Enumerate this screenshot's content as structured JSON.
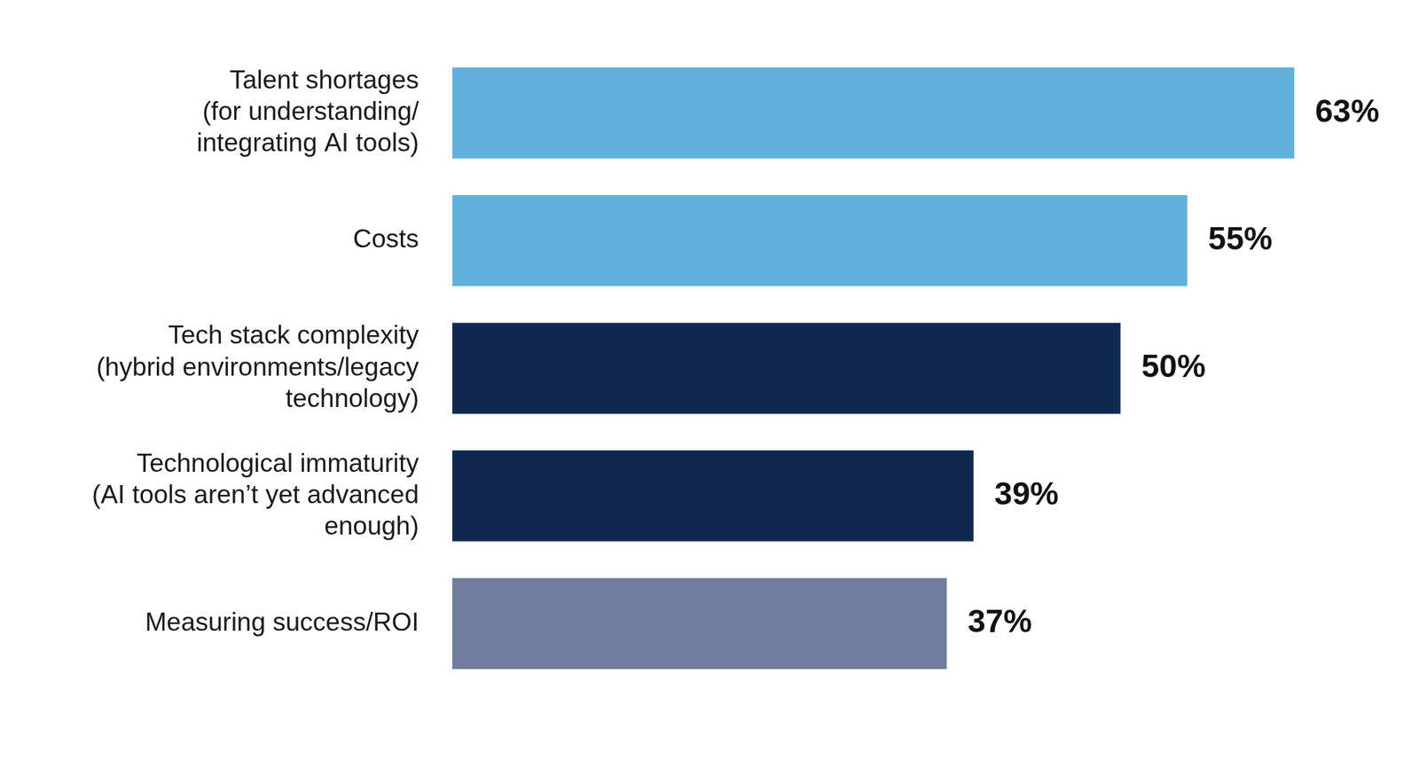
{
  "chart_data": {
    "type": "bar",
    "orientation": "horizontal",
    "categories": [
      [
        "Talent shortages",
        "(for understanding/",
        "integrating AI tools)"
      ],
      [
        "Costs"
      ],
      [
        "Tech stack complexity",
        "(hybrid environments/legacy",
        "technology)"
      ],
      [
        "Technological immaturity",
        "(AI tools aren’t yet advanced",
        "enough)"
      ],
      [
        "Measuring success/ROI"
      ]
    ],
    "values": [
      63,
      55,
      50,
      39,
      37
    ],
    "value_labels": [
      "63%",
      "55%",
      "50%",
      "39%",
      "37%"
    ],
    "colors": [
      "#62b0dc",
      "#62b0dc",
      "#112852",
      "#112852",
      "#6e7d9c"
    ],
    "xlim": [
      0,
      63
    ],
    "data_labels": true,
    "tick_labels": "y",
    "grid": false
  }
}
